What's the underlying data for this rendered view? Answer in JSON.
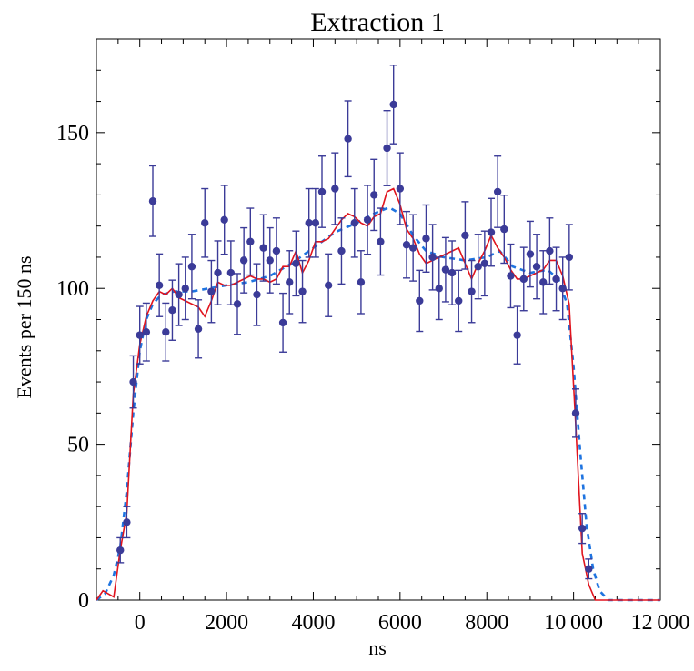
{
  "chart_data": {
    "type": "scatter",
    "title": "Extraction 1",
    "xlabel": "ns",
    "ylabel": "Events per 150 ns",
    "xlim": [
      -1000,
      12000
    ],
    "ylim": [
      0,
      180
    ],
    "x_ticks": [
      0,
      2000,
      4000,
      6000,
      8000,
      10000,
      12000
    ],
    "x_tick_labels": [
      "0",
      "2000",
      "4000",
      "6000",
      "8000",
      "10 000",
      "12 000"
    ],
    "y_ticks": [
      0,
      50,
      100,
      150
    ],
    "y_tick_labels": [
      "0",
      "50",
      "100",
      "150"
    ],
    "grid": false,
    "colors": {
      "points": "#3b3b98",
      "model_line": "#e0141e",
      "fit_line": "#1f74e0"
    },
    "series": [
      {
        "type": "scatter_errorbars",
        "points": [
          {
            "x": -450,
            "y": 16
          },
          {
            "x": -300,
            "y": 25
          },
          {
            "x": -150,
            "y": 70
          },
          {
            "x": 0,
            "y": 85
          },
          {
            "x": 150,
            "y": 86
          },
          {
            "x": 300,
            "y": 128
          },
          {
            "x": 450,
            "y": 101
          },
          {
            "x": 600,
            "y": 86
          },
          {
            "x": 750,
            "y": 93
          },
          {
            "x": 900,
            "y": 98
          },
          {
            "x": 1050,
            "y": 100
          },
          {
            "x": 1200,
            "y": 107
          },
          {
            "x": 1350,
            "y": 87
          },
          {
            "x": 1500,
            "y": 121
          },
          {
            "x": 1650,
            "y": 99
          },
          {
            "x": 1800,
            "y": 105
          },
          {
            "x": 1950,
            "y": 122
          },
          {
            "x": 2100,
            "y": 105
          },
          {
            "x": 2250,
            "y": 95
          },
          {
            "x": 2400,
            "y": 109
          },
          {
            "x": 2550,
            "y": 115
          },
          {
            "x": 2700,
            "y": 98
          },
          {
            "x": 2850,
            "y": 113
          },
          {
            "x": 3000,
            "y": 109
          },
          {
            "x": 3150,
            "y": 112
          },
          {
            "x": 3300,
            "y": 89
          },
          {
            "x": 3450,
            "y": 102
          },
          {
            "x": 3600,
            "y": 108
          },
          {
            "x": 3750,
            "y": 99
          },
          {
            "x": 3900,
            "y": 121
          },
          {
            "x": 4050,
            "y": 121
          },
          {
            "x": 4200,
            "y": 131
          },
          {
            "x": 4350,
            "y": 101
          },
          {
            "x": 4500,
            "y": 132
          },
          {
            "x": 4650,
            "y": 112
          },
          {
            "x": 4800,
            "y": 148
          },
          {
            "x": 4950,
            "y": 121
          },
          {
            "x": 5100,
            "y": 102
          },
          {
            "x": 5250,
            "y": 122
          },
          {
            "x": 5400,
            "y": 130
          },
          {
            "x": 5550,
            "y": 115
          },
          {
            "x": 5700,
            "y": 145
          },
          {
            "x": 5850,
            "y": 159
          },
          {
            "x": 6000,
            "y": 132
          },
          {
            "x": 6150,
            "y": 114
          },
          {
            "x": 6300,
            "y": 113
          },
          {
            "x": 6450,
            "y": 96
          },
          {
            "x": 6600,
            "y": 116
          },
          {
            "x": 6750,
            "y": 110
          },
          {
            "x": 6900,
            "y": 100
          },
          {
            "x": 7050,
            "y": 106
          },
          {
            "x": 7200,
            "y": 105
          },
          {
            "x": 7350,
            "y": 96
          },
          {
            "x": 7500,
            "y": 117
          },
          {
            "x": 7650,
            "y": 99
          },
          {
            "x": 7800,
            "y": 107
          },
          {
            "x": 7950,
            "y": 108
          },
          {
            "x": 8100,
            "y": 118
          },
          {
            "x": 8250,
            "y": 131
          },
          {
            "x": 8400,
            "y": 119
          },
          {
            "x": 8550,
            "y": 104
          },
          {
            "x": 8700,
            "y": 85
          },
          {
            "x": 8850,
            "y": 103
          },
          {
            "x": 9000,
            "y": 111
          },
          {
            "x": 9150,
            "y": 107
          },
          {
            "x": 9300,
            "y": 102
          },
          {
            "x": 9450,
            "y": 112
          },
          {
            "x": 9600,
            "y": 103
          },
          {
            "x": 9750,
            "y": 100
          },
          {
            "x": 9900,
            "y": 110
          },
          {
            "x": 10050,
            "y": 60
          },
          {
            "x": 10200,
            "y": 23
          },
          {
            "x": 10350,
            "y": 10
          }
        ]
      },
      {
        "type": "line",
        "style": "solid",
        "points": [
          {
            "x": -1000,
            "y": 0
          },
          {
            "x": -850,
            "y": 3
          },
          {
            "x": -600,
            "y": 1
          },
          {
            "x": -450,
            "y": 16
          },
          {
            "x": -300,
            "y": 28
          },
          {
            "x": -150,
            "y": 66
          },
          {
            "x": 0,
            "y": 82
          },
          {
            "x": 150,
            "y": 91
          },
          {
            "x": 300,
            "y": 96
          },
          {
            "x": 450,
            "y": 99
          },
          {
            "x": 600,
            "y": 98
          },
          {
            "x": 750,
            "y": 100
          },
          {
            "x": 900,
            "y": 97
          },
          {
            "x": 1050,
            "y": 96
          },
          {
            "x": 1200,
            "y": 95
          },
          {
            "x": 1350,
            "y": 94
          },
          {
            "x": 1500,
            "y": 91
          },
          {
            "x": 1650,
            "y": 96
          },
          {
            "x": 1800,
            "y": 102
          },
          {
            "x": 1950,
            "y": 101
          },
          {
            "x": 2100,
            "y": 101
          },
          {
            "x": 2250,
            "y": 102
          },
          {
            "x": 2400,
            "y": 103
          },
          {
            "x": 2550,
            "y": 104
          },
          {
            "x": 2700,
            "y": 103
          },
          {
            "x": 2850,
            "y": 103
          },
          {
            "x": 3000,
            "y": 102
          },
          {
            "x": 3150,
            "y": 103
          },
          {
            "x": 3300,
            "y": 107
          },
          {
            "x": 3450,
            "y": 107
          },
          {
            "x": 3600,
            "y": 112
          },
          {
            "x": 3750,
            "y": 105
          },
          {
            "x": 3900,
            "y": 109
          },
          {
            "x": 4050,
            "y": 115
          },
          {
            "x": 4200,
            "y": 115
          },
          {
            "x": 4350,
            "y": 116
          },
          {
            "x": 4500,
            "y": 119
          },
          {
            "x": 4650,
            "y": 122
          },
          {
            "x": 4800,
            "y": 124
          },
          {
            "x": 4950,
            "y": 123
          },
          {
            "x": 5100,
            "y": 121
          },
          {
            "x": 5250,
            "y": 120
          },
          {
            "x": 5400,
            "y": 123
          },
          {
            "x": 5550,
            "y": 124
          },
          {
            "x": 5700,
            "y": 131
          },
          {
            "x": 5850,
            "y": 132
          },
          {
            "x": 6000,
            "y": 127
          },
          {
            "x": 6150,
            "y": 119
          },
          {
            "x": 6300,
            "y": 116
          },
          {
            "x": 6450,
            "y": 111
          },
          {
            "x": 6600,
            "y": 108
          },
          {
            "x": 6750,
            "y": 109
          },
          {
            "x": 6900,
            "y": 110
          },
          {
            "x": 7050,
            "y": 111
          },
          {
            "x": 7200,
            "y": 112
          },
          {
            "x": 7350,
            "y": 113
          },
          {
            "x": 7500,
            "y": 108
          },
          {
            "x": 7650,
            "y": 103
          },
          {
            "x": 7800,
            "y": 108
          },
          {
            "x": 7950,
            "y": 112
          },
          {
            "x": 8100,
            "y": 117
          },
          {
            "x": 8250,
            "y": 113
          },
          {
            "x": 8400,
            "y": 110
          },
          {
            "x": 8550,
            "y": 106
          },
          {
            "x": 8700,
            "y": 103
          },
          {
            "x": 8850,
            "y": 103
          },
          {
            "x": 9000,
            "y": 104
          },
          {
            "x": 9150,
            "y": 105
          },
          {
            "x": 9300,
            "y": 106
          },
          {
            "x": 9450,
            "y": 109
          },
          {
            "x": 9600,
            "y": 109
          },
          {
            "x": 9750,
            "y": 104
          },
          {
            "x": 9900,
            "y": 95
          },
          {
            "x": 10050,
            "y": 56
          },
          {
            "x": 10200,
            "y": 15
          },
          {
            "x": 10350,
            "y": 5
          },
          {
            "x": 10500,
            "y": 0
          },
          {
            "x": 12000,
            "y": 0
          }
        ]
      },
      {
        "type": "line",
        "style": "dashed",
        "points": [
          {
            "x": -1000,
            "y": 0
          },
          {
            "x": -800,
            "y": 2
          },
          {
            "x": -600,
            "y": 8
          },
          {
            "x": -450,
            "y": 17
          },
          {
            "x": -300,
            "y": 35
          },
          {
            "x": -150,
            "y": 60
          },
          {
            "x": 0,
            "y": 80
          },
          {
            "x": 150,
            "y": 90
          },
          {
            "x": 300,
            "y": 95
          },
          {
            "x": 500,
            "y": 98
          },
          {
            "x": 800,
            "y": 99
          },
          {
            "x": 1200,
            "y": 99
          },
          {
            "x": 1600,
            "y": 100
          },
          {
            "x": 2000,
            "y": 101
          },
          {
            "x": 2500,
            "y": 102
          },
          {
            "x": 3000,
            "y": 104
          },
          {
            "x": 3500,
            "y": 108
          },
          {
            "x": 4000,
            "y": 113
          },
          {
            "x": 4500,
            "y": 118
          },
          {
            "x": 5000,
            "y": 121
          },
          {
            "x": 5400,
            "y": 124
          },
          {
            "x": 5750,
            "y": 126
          },
          {
            "x": 6000,
            "y": 124
          },
          {
            "x": 6300,
            "y": 117
          },
          {
            "x": 6600,
            "y": 112
          },
          {
            "x": 7000,
            "y": 110
          },
          {
            "x": 7500,
            "y": 109
          },
          {
            "x": 8000,
            "y": 110
          },
          {
            "x": 8300,
            "y": 112
          },
          {
            "x": 8600,
            "y": 107
          },
          {
            "x": 9000,
            "y": 105
          },
          {
            "x": 9400,
            "y": 106
          },
          {
            "x": 9650,
            "y": 103
          },
          {
            "x": 9850,
            "y": 95
          },
          {
            "x": 10000,
            "y": 75
          },
          {
            "x": 10150,
            "y": 48
          },
          {
            "x": 10300,
            "y": 24
          },
          {
            "x": 10450,
            "y": 10
          },
          {
            "x": 10600,
            "y": 3
          },
          {
            "x": 10800,
            "y": 0
          },
          {
            "x": 12000,
            "y": 0
          }
        ]
      }
    ]
  }
}
